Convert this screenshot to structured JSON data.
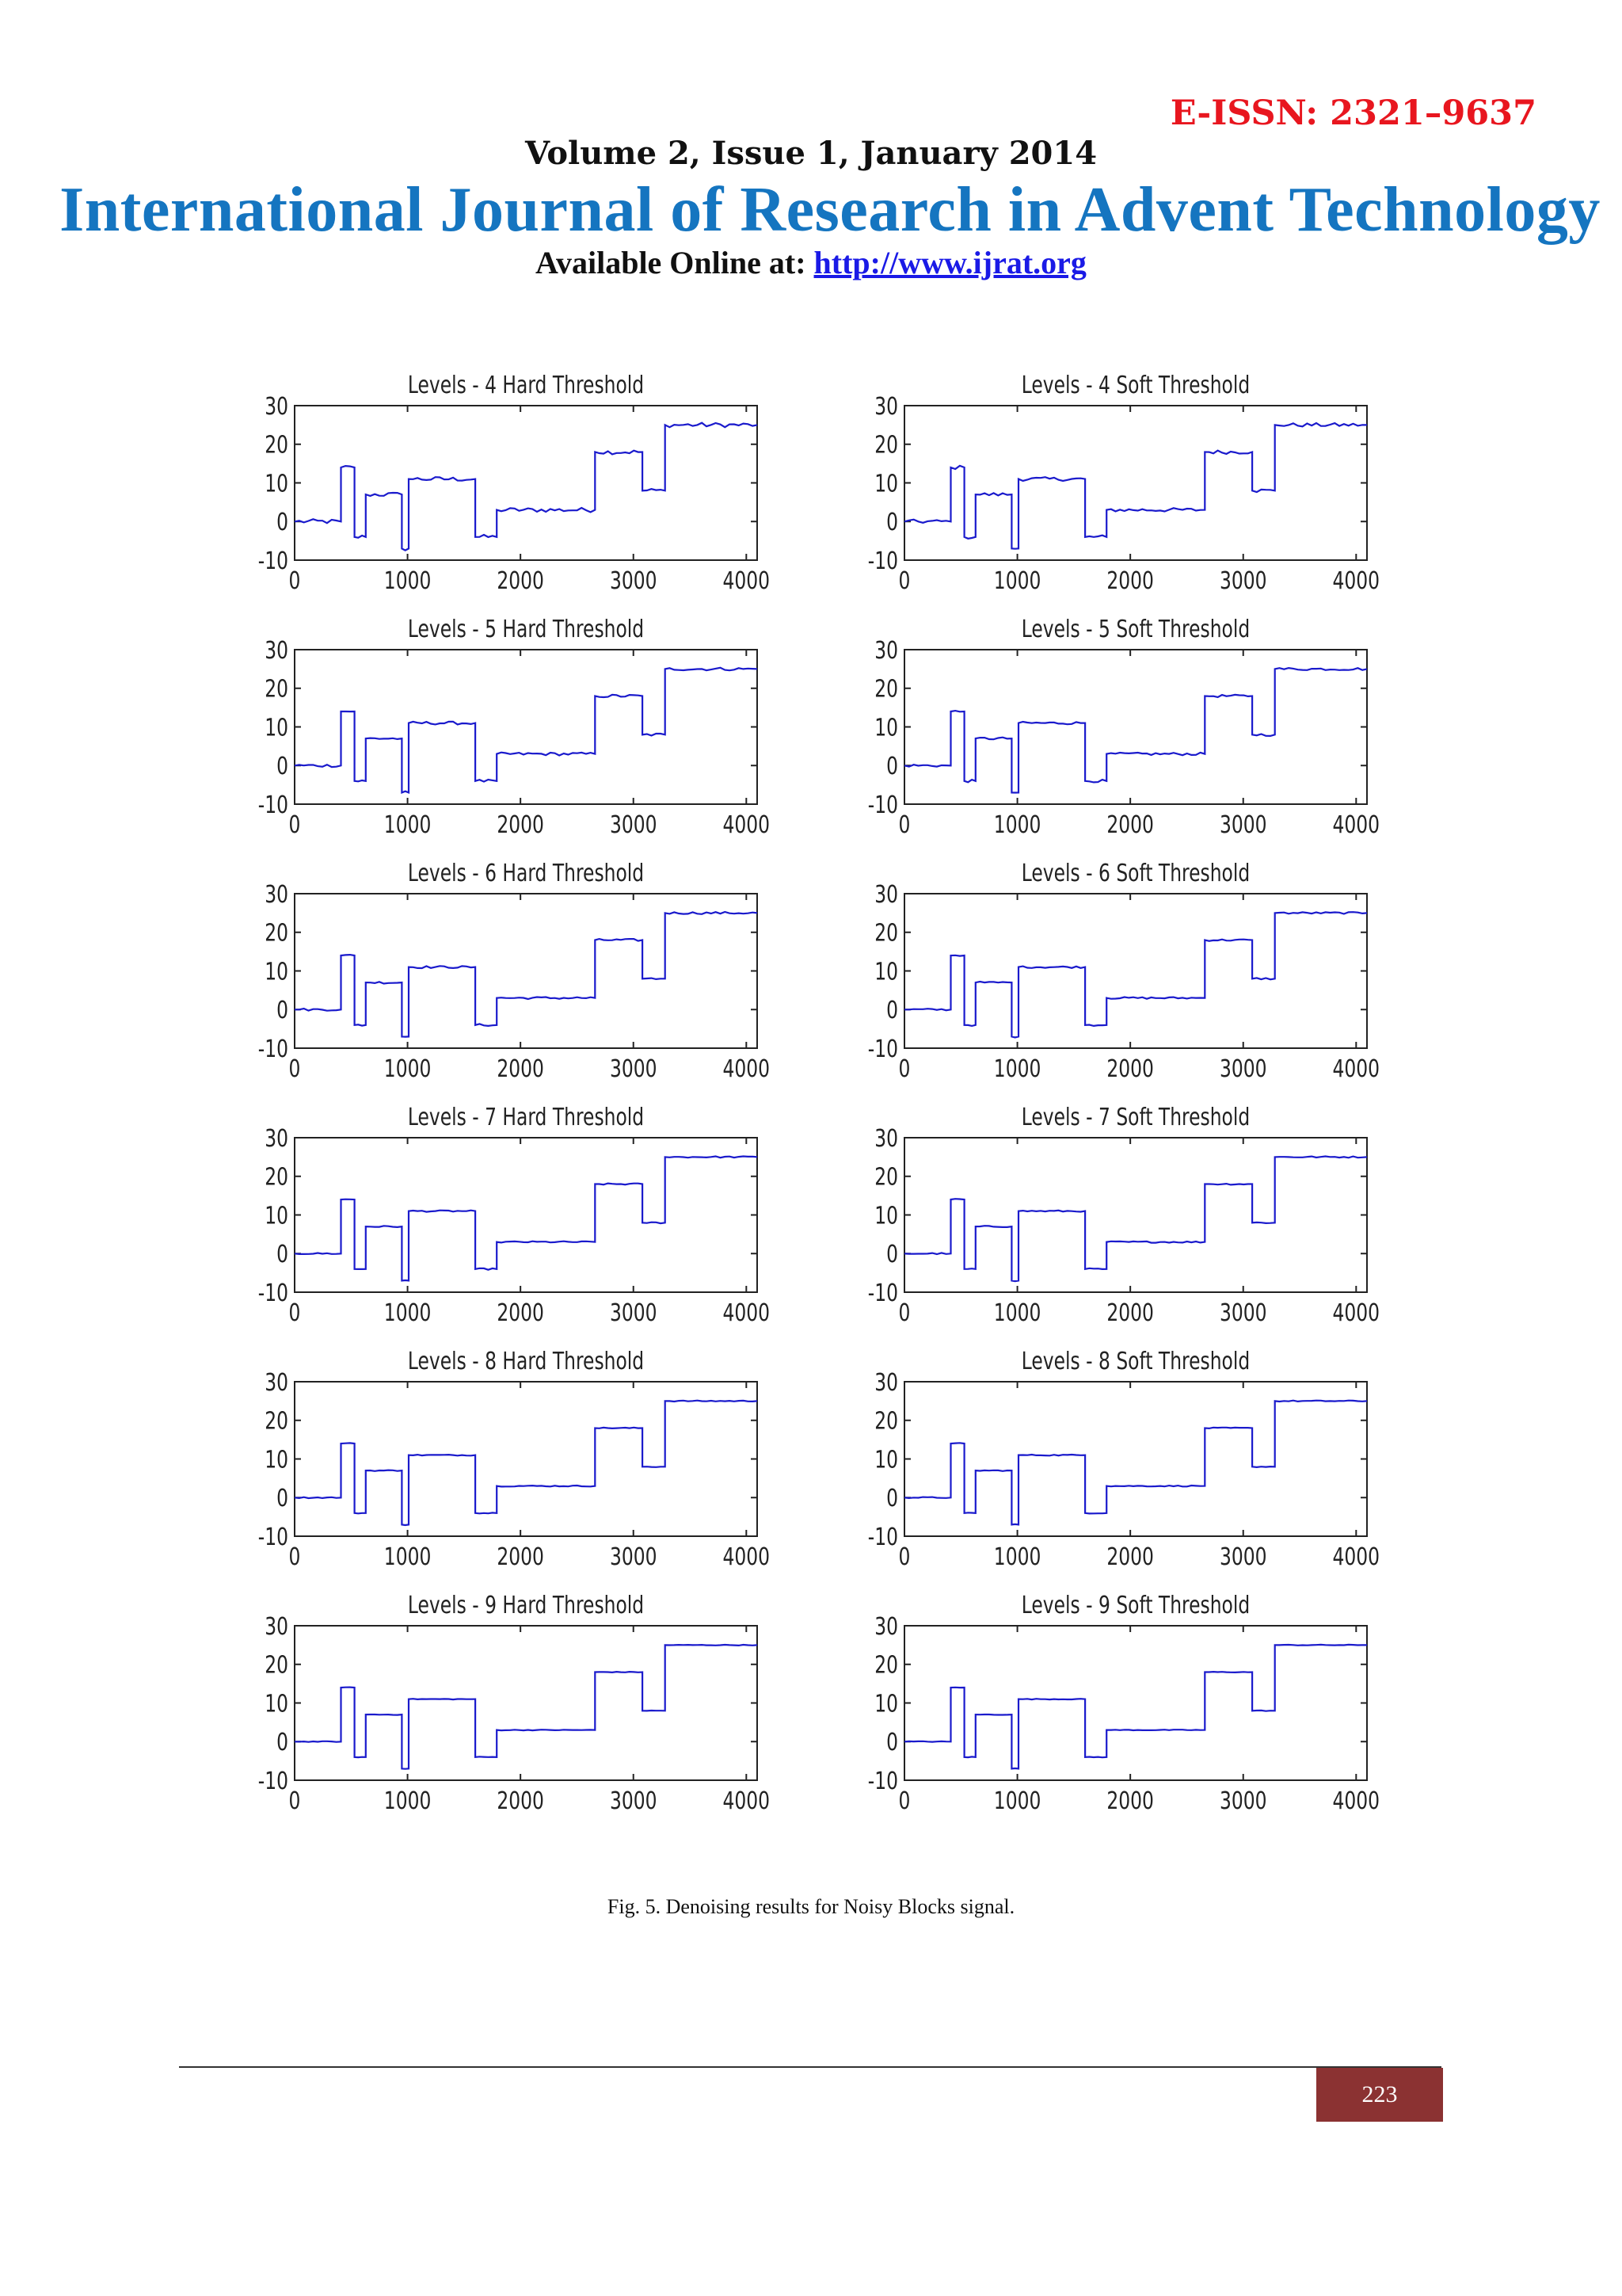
{
  "header": {
    "eissn": "E-ISSN: 2321–9637",
    "volume": "Volume 2, Issue 1, January 2014",
    "journal_title": "International Journal of Research in Advent Technology",
    "available_label": "Available Online at:",
    "url": "http://www.ijrat.org"
  },
  "figure": {
    "caption": "Fig. 5.  Denoising results for Noisy Blocks signal."
  },
  "footer": {
    "page_number": "223"
  },
  "colors": {
    "eissn": "#e8161f",
    "journal_title": "#1575c0",
    "link": "#1a1ae6",
    "page_badge": "#8b3232",
    "signal": "#1a1acc"
  },
  "chart_data": [
    {
      "type": "line",
      "title": "Levels - 4  Hard Threshold",
      "x_ticks": [
        0,
        1000,
        2000,
        3000,
        4000
      ],
      "y_ticks": [
        30,
        20,
        10,
        0,
        -10
      ],
      "xlim": [
        0,
        4096
      ],
      "ylim": [
        -10,
        30
      ],
      "series": [
        {
          "x": [
            0,
            410,
            410,
            530,
            530,
            630,
            630,
            950,
            950,
            1010,
            1010,
            1600,
            1600,
            1790,
            1790,
            2660,
            2660,
            3080,
            3080,
            3280,
            3280,
            4096
          ],
          "y": [
            0,
            0,
            14,
            14,
            -4,
            -4,
            7,
            7,
            -7,
            -7,
            11,
            11,
            -4,
            -4,
            3,
            3,
            18,
            18,
            8,
            8,
            25,
            25
          ]
        }
      ],
      "noise_level": 0.6
    },
    {
      "type": "line",
      "title": "Levels - 4  Soft Threshold",
      "x_ticks": [
        0,
        1000,
        2000,
        3000,
        4000
      ],
      "y_ticks": [
        30,
        20,
        10,
        0,
        -10
      ],
      "xlim": [
        0,
        4096
      ],
      "ylim": [
        -10,
        30
      ],
      "series": [
        {
          "x": [
            0,
            410,
            410,
            530,
            530,
            630,
            630,
            950,
            950,
            1010,
            1010,
            1600,
            1600,
            1790,
            1790,
            2660,
            2660,
            3080,
            3080,
            3280,
            3280,
            4096
          ],
          "y": [
            0,
            0,
            14,
            14,
            -4,
            -4,
            7,
            7,
            -7,
            -7,
            11,
            11,
            -4,
            -4,
            3,
            3,
            18,
            18,
            8,
            8,
            25,
            25
          ]
        }
      ],
      "noise_level": 0.5
    },
    {
      "type": "line",
      "title": "Levels - 5  Hard Threshold",
      "x_ticks": [
        0,
        1000,
        2000,
        3000,
        4000
      ],
      "y_ticks": [
        30,
        20,
        10,
        0,
        -10
      ],
      "xlim": [
        0,
        4096
      ],
      "ylim": [
        -10,
        30
      ],
      "series": [
        {
          "x": [
            0,
            410,
            410,
            530,
            530,
            630,
            630,
            950,
            950,
            1010,
            1010,
            1600,
            1600,
            1790,
            1790,
            2660,
            2660,
            3080,
            3080,
            3280,
            3280,
            4096
          ],
          "y": [
            0,
            0,
            14,
            14,
            -4,
            -4,
            7,
            7,
            -7,
            -7,
            11,
            11,
            -4,
            -4,
            3,
            3,
            18,
            18,
            8,
            8,
            25,
            25
          ]
        }
      ],
      "noise_level": 0.4
    },
    {
      "type": "line",
      "title": "Levels - 5  Soft Threshold",
      "x_ticks": [
        0,
        1000,
        2000,
        3000,
        4000
      ],
      "y_ticks": [
        30,
        20,
        10,
        0,
        -10
      ],
      "xlim": [
        0,
        4096
      ],
      "ylim": [
        -10,
        30
      ],
      "series": [
        {
          "x": [
            0,
            410,
            410,
            530,
            530,
            630,
            630,
            950,
            950,
            1010,
            1010,
            1600,
            1600,
            1790,
            1790,
            2660,
            2660,
            3080,
            3080,
            3280,
            3280,
            4096
          ],
          "y": [
            0,
            0,
            14,
            14,
            -4,
            -4,
            7,
            7,
            -7,
            -7,
            11,
            11,
            -4,
            -4,
            3,
            3,
            18,
            18,
            8,
            8,
            25,
            25
          ]
        }
      ],
      "noise_level": 0.35
    },
    {
      "type": "line",
      "title": "Levels - 6  Hard Threshold",
      "x_ticks": [
        0,
        1000,
        2000,
        3000,
        4000
      ],
      "y_ticks": [
        30,
        20,
        10,
        0,
        -10
      ],
      "xlim": [
        0,
        4096
      ],
      "ylim": [
        -10,
        30
      ],
      "series": [
        {
          "x": [
            0,
            410,
            410,
            530,
            530,
            630,
            630,
            950,
            950,
            1010,
            1010,
            1600,
            1600,
            1790,
            1790,
            2660,
            2660,
            3080,
            3080,
            3280,
            3280,
            4096
          ],
          "y": [
            0,
            0,
            14,
            14,
            -4,
            -4,
            7,
            7,
            -7,
            -7,
            11,
            11,
            -4,
            -4,
            3,
            3,
            18,
            18,
            8,
            8,
            25,
            25
          ]
        }
      ],
      "noise_level": 0.3
    },
    {
      "type": "line",
      "title": "Levels - 6  Soft Threshold",
      "x_ticks": [
        0,
        1000,
        2000,
        3000,
        4000
      ],
      "y_ticks": [
        30,
        20,
        10,
        0,
        -10
      ],
      "xlim": [
        0,
        4096
      ],
      "ylim": [
        -10,
        30
      ],
      "series": [
        {
          "x": [
            0,
            410,
            410,
            530,
            530,
            630,
            630,
            950,
            950,
            1010,
            1010,
            1600,
            1600,
            1790,
            1790,
            2660,
            2660,
            3080,
            3080,
            3280,
            3280,
            4096
          ],
          "y": [
            0,
            0,
            14,
            14,
            -4,
            -4,
            7,
            7,
            -7,
            -7,
            11,
            11,
            -4,
            -4,
            3,
            3,
            18,
            18,
            8,
            8,
            25,
            25
          ]
        }
      ],
      "noise_level": 0.25
    },
    {
      "type": "line",
      "title": "Levels - 7  Hard Threshold",
      "x_ticks": [
        0,
        1000,
        2000,
        3000,
        4000
      ],
      "y_ticks": [
        30,
        20,
        10,
        0,
        -10
      ],
      "xlim": [
        0,
        4096
      ],
      "ylim": [
        -10,
        30
      ],
      "series": [
        {
          "x": [
            0,
            410,
            410,
            530,
            530,
            630,
            630,
            950,
            950,
            1010,
            1010,
            1600,
            1600,
            1790,
            1790,
            2660,
            2660,
            3080,
            3080,
            3280,
            3280,
            4096
          ],
          "y": [
            0,
            0,
            14,
            14,
            -4,
            -4,
            7,
            7,
            -7,
            -7,
            11,
            11,
            -4,
            -4,
            3,
            3,
            18,
            18,
            8,
            8,
            25,
            25
          ]
        }
      ],
      "noise_level": 0.2
    },
    {
      "type": "line",
      "title": "Levels - 7  Soft Threshold",
      "x_ticks": [
        0,
        1000,
        2000,
        3000,
        4000
      ],
      "y_ticks": [
        30,
        20,
        10,
        0,
        -10
      ],
      "xlim": [
        0,
        4096
      ],
      "ylim": [
        -10,
        30
      ],
      "series": [
        {
          "x": [
            0,
            410,
            410,
            530,
            530,
            630,
            630,
            950,
            950,
            1010,
            1010,
            1600,
            1600,
            1790,
            1790,
            2660,
            2660,
            3080,
            3080,
            3280,
            3280,
            4096
          ],
          "y": [
            0,
            0,
            14,
            14,
            -4,
            -4,
            7,
            7,
            -7,
            -7,
            11,
            11,
            -4,
            -4,
            3,
            3,
            18,
            18,
            8,
            8,
            25,
            25
          ]
        }
      ],
      "noise_level": 0.2
    },
    {
      "type": "line",
      "title": "Levels - 8  Hard Threshold",
      "x_ticks": [
        0,
        1000,
        2000,
        3000,
        4000
      ],
      "y_ticks": [
        30,
        20,
        10,
        0,
        -10
      ],
      "xlim": [
        0,
        4096
      ],
      "ylim": [
        -10,
        30
      ],
      "series": [
        {
          "x": [
            0,
            410,
            410,
            530,
            530,
            630,
            630,
            950,
            950,
            1010,
            1010,
            1600,
            1600,
            1790,
            1790,
            2660,
            2660,
            3080,
            3080,
            3280,
            3280,
            4096
          ],
          "y": [
            0,
            0,
            14,
            14,
            -4,
            -4,
            7,
            7,
            -7,
            -7,
            11,
            11,
            -4,
            -4,
            3,
            3,
            18,
            18,
            8,
            8,
            25,
            25
          ]
        }
      ],
      "noise_level": 0.15
    },
    {
      "type": "line",
      "title": "Levels - 8  Soft Threshold",
      "x_ticks": [
        0,
        1000,
        2000,
        3000,
        4000
      ],
      "y_ticks": [
        30,
        20,
        10,
        0,
        -10
      ],
      "xlim": [
        0,
        4096
      ],
      "ylim": [
        -10,
        30
      ],
      "series": [
        {
          "x": [
            0,
            410,
            410,
            530,
            530,
            630,
            630,
            950,
            950,
            1010,
            1010,
            1600,
            1600,
            1790,
            1790,
            2660,
            2660,
            3080,
            3080,
            3280,
            3280,
            4096
          ],
          "y": [
            0,
            0,
            14,
            14,
            -4,
            -4,
            7,
            7,
            -7,
            -7,
            11,
            11,
            -4,
            -4,
            3,
            3,
            18,
            18,
            8,
            8,
            25,
            25
          ]
        }
      ],
      "noise_level": 0.15
    },
    {
      "type": "line",
      "title": "Levels - 9  Hard Threshold",
      "x_ticks": [
        0,
        1000,
        2000,
        3000,
        4000
      ],
      "y_ticks": [
        30,
        20,
        10,
        0,
        -10
      ],
      "xlim": [
        0,
        4096
      ],
      "ylim": [
        -10,
        30
      ],
      "series": [
        {
          "x": [
            0,
            410,
            410,
            530,
            530,
            630,
            630,
            950,
            950,
            1010,
            1010,
            1600,
            1600,
            1790,
            1790,
            2660,
            2660,
            3080,
            3080,
            3280,
            3280,
            4096
          ],
          "y": [
            0,
            0,
            14,
            14,
            -4,
            -4,
            7,
            7,
            -7,
            -7,
            11,
            11,
            -4,
            -4,
            3,
            3,
            18,
            18,
            8,
            8,
            25,
            25
          ]
        }
      ],
      "noise_level": 0.1
    },
    {
      "type": "line",
      "title": "Levels - 9  Soft Threshold",
      "x_ticks": [
        0,
        1000,
        2000,
        3000,
        4000
      ],
      "y_ticks": [
        30,
        20,
        10,
        0,
        -10
      ],
      "xlim": [
        0,
        4096
      ],
      "ylim": [
        -10,
        30
      ],
      "series": [
        {
          "x": [
            0,
            410,
            410,
            530,
            530,
            630,
            630,
            950,
            950,
            1010,
            1010,
            1600,
            1600,
            1790,
            1790,
            2660,
            2660,
            3080,
            3080,
            3280,
            3280,
            4096
          ],
          "y": [
            0,
            0,
            14,
            14,
            -4,
            -4,
            7,
            7,
            -7,
            -7,
            11,
            11,
            -4,
            -4,
            3,
            3,
            18,
            18,
            8,
            8,
            25,
            25
          ]
        }
      ],
      "noise_level": 0.1
    }
  ]
}
